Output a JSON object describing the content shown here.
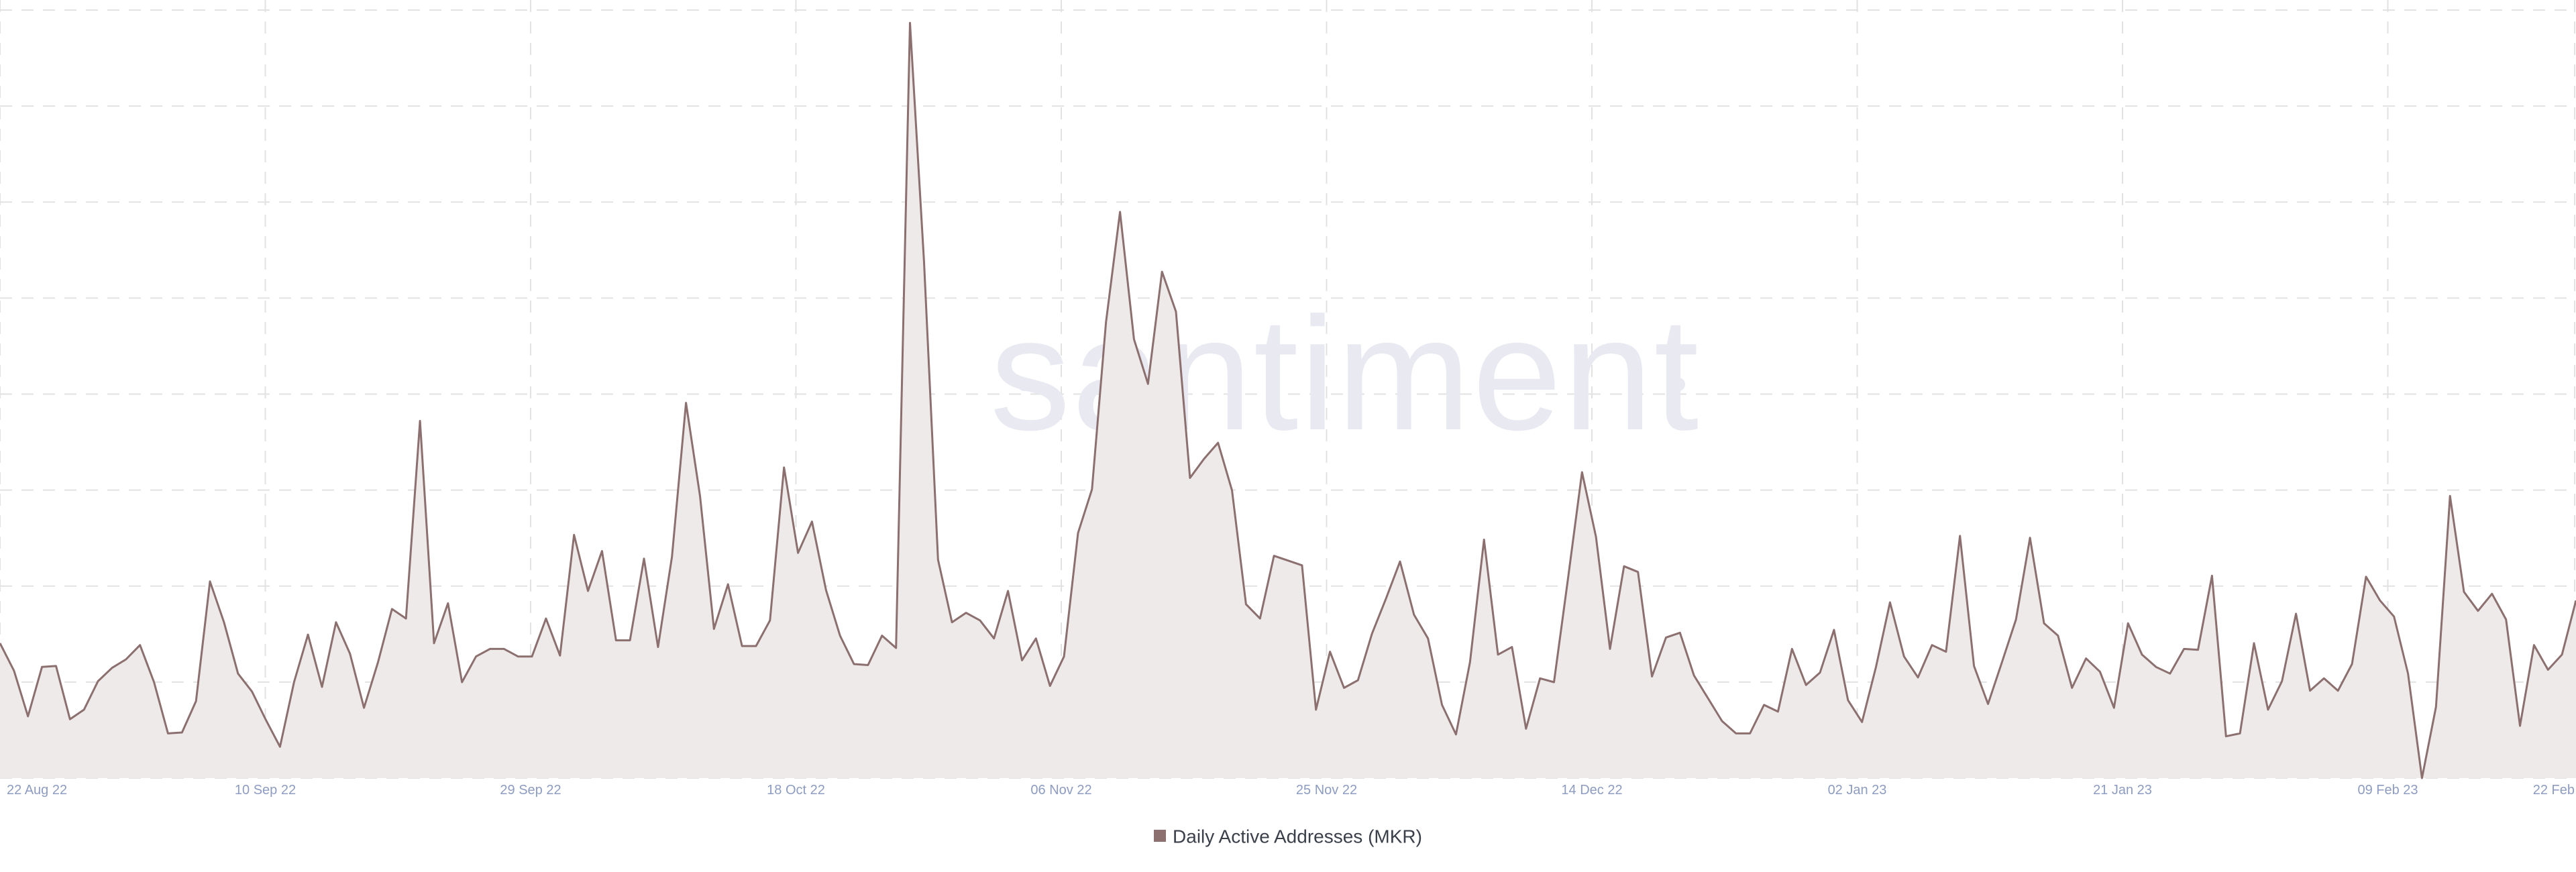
{
  "watermark": "santiment",
  "colors": {
    "line": "#8c6f6f",
    "area": "#eeeae9",
    "grid": "#e2e2e2",
    "tick": "#8d9cc0",
    "watermark": "#e8e9f1"
  },
  "chart_data": {
    "type": "area",
    "title": "",
    "xlabel": "",
    "ylabel": "",
    "x_tick_labels": [
      "22 Aug 22",
      "10 Sep 22",
      "29 Sep 22",
      "18 Oct 22",
      "06 Nov 22",
      "25 Nov 22",
      "14 Dec 22",
      "02 Jan 23",
      "21 Jan 23",
      "09 Feb 23",
      "22 Feb"
    ],
    "y_axis_visible": false,
    "grid": true,
    "legend_position": "bottom-center",
    "ylim": [
      0,
      800
    ],
    "series": [
      {
        "name": "Daily Active Addresses (MKR)",
        "values": [
          142,
          113,
          65,
          117,
          118,
          62,
          72,
          102,
          116,
          125,
          140,
          101,
          47,
          48,
          81,
          207,
          164,
          110,
          91,
          61,
          33,
          101,
          151,
          96,
          164,
          131,
          74,
          122,
          178,
          168,
          376,
          142,
          184,
          101,
          128,
          136,
          136,
          128,
          128,
          168,
          129,
          256,
          197,
          239,
          145,
          145,
          231,
          138,
          233,
          395,
          297,
          157,
          204,
          139,
          139,
          166,
          327,
          237,
          270,
          198,
          150,
          120,
          119,
          150,
          137,
          795,
          544,
          230,
          164,
          174,
          166,
          147,
          197,
          124,
          147,
          97,
          128,
          258,
          304,
          480,
          596,
          462,
          415,
          533,
          491,
          316,
          336,
          353,
          303,
          183,
          168,
          234,
          229,
          224,
          72,
          133,
          95,
          103,
          152,
          189,
          228,
          172,
          147,
          77,
          46,
          122,
          251,
          130,
          138,
          52,
          105,
          101,
          210,
          322,
          254,
          136,
          223,
          217,
          107,
          148,
          153,
          108,
          84,
          60,
          47,
          47,
          77,
          70,
          136,
          98,
          111,
          156,
          82,
          59,
          117,
          185,
          128,
          106,
          140,
          133,
          255,
          118,
          78,
          122,
          167,
          253,
          163,
          150,
          95,
          126,
          112,
          74,
          163,
          130,
          117,
          110,
          136,
          135,
          213,
          44,
          47,
          142,
          72,
          102,
          173,
          92,
          105,
          92,
          120,
          212,
          187,
          170,
          110,
          0,
          75,
          297,
          196,
          176,
          194,
          167,
          55,
          140,
          114,
          130,
          187
        ]
      }
    ]
  }
}
